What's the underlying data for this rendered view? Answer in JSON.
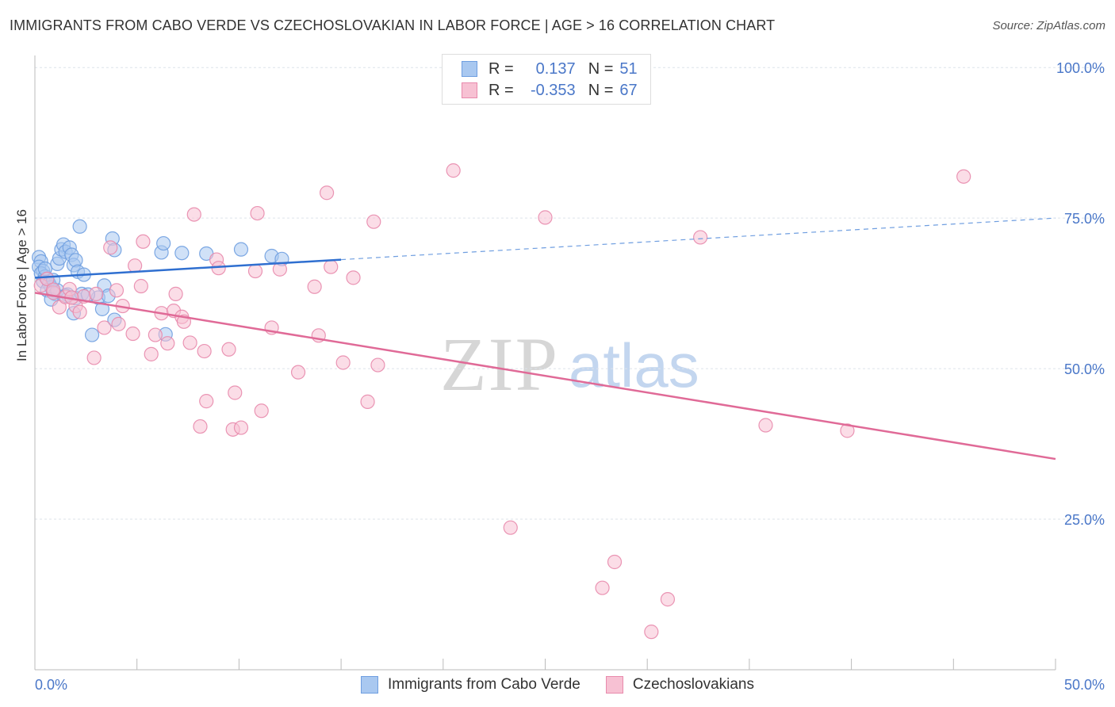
{
  "title": "IMMIGRANTS FROM CABO VERDE VS CZECHOSLOVAKIAN IN LABOR FORCE | AGE > 16 CORRELATION CHART",
  "source": "Source: ZipAtlas.com",
  "watermark": {
    "zip": "ZIP",
    "atlas": "atlas"
  },
  "legend": {
    "rows": [
      {
        "r_label": "R =",
        "r_value": "0.137",
        "n_label": "N =",
        "n_value": "51",
        "color": "#a9c8f0",
        "border": "#6f9ee0"
      },
      {
        "r_label": "R =",
        "r_value": "-0.353",
        "n_label": "N =",
        "n_value": "67",
        "color": "#f7c1d3",
        "border": "#e88aac"
      }
    ]
  },
  "chart_data": {
    "type": "scatter",
    "title": "IMMIGRANTS FROM CABO VERDE VS CZECHOSLOVAKIAN IN LABOR FORCE | AGE > 16 CORRELATION CHART",
    "xlabel": "",
    "ylabel": "In Labor Force | Age > 16",
    "xlim": [
      0,
      50
    ],
    "ylim": [
      0,
      102
    ],
    "x_tick_labels": [
      "0.0%",
      "50.0%"
    ],
    "y_tick_labels": [
      "25.0%",
      "50.0%",
      "75.0%",
      "100.0%"
    ],
    "y_ticks": [
      25,
      50,
      75,
      100
    ],
    "grid": true,
    "legend_position": "bottom-center",
    "series": [
      {
        "name": "Immigrants from Cabo Verde",
        "color": "#6f9ee0",
        "fill": "#a9c8f0",
        "points": [
          [
            0.2,
            68.5
          ],
          [
            0.3,
            67.8
          ],
          [
            0.2,
            66.9
          ],
          [
            0.4,
            66.2
          ],
          [
            0.3,
            65.8
          ],
          [
            0.5,
            65.3
          ],
          [
            0.6,
            64.9
          ],
          [
            0.4,
            64.5
          ],
          [
            0.7,
            64.1
          ],
          [
            0.8,
            63.5
          ],
          [
            0.6,
            63.0
          ],
          [
            0.9,
            62.7
          ],
          [
            1.0,
            62.4
          ],
          [
            0.8,
            61.5
          ],
          [
            1.1,
            67.4
          ],
          [
            1.2,
            68.3
          ],
          [
            1.3,
            69.8
          ],
          [
            1.4,
            70.6
          ],
          [
            1.5,
            69.4
          ],
          [
            1.7,
            70.1
          ],
          [
            1.8,
            68.9
          ],
          [
            1.9,
            67.2
          ],
          [
            2.0,
            68.0
          ],
          [
            2.1,
            66.1
          ],
          [
            2.4,
            65.6
          ],
          [
            1.6,
            62.3
          ],
          [
            1.9,
            59.2
          ],
          [
            2.0,
            61.7
          ],
          [
            2.3,
            62.4
          ],
          [
            2.2,
            73.6
          ],
          [
            2.8,
            55.6
          ],
          [
            3.1,
            61.8
          ],
          [
            3.3,
            59.9
          ],
          [
            3.4,
            63.8
          ],
          [
            3.6,
            62.1
          ],
          [
            3.9,
            58.1
          ],
          [
            3.8,
            71.6
          ],
          [
            3.9,
            69.7
          ],
          [
            6.2,
            69.3
          ],
          [
            6.3,
            70.8
          ],
          [
            7.2,
            69.2
          ],
          [
            8.4,
            69.1
          ],
          [
            10.1,
            69.8
          ],
          [
            11.6,
            68.7
          ],
          [
            12.1,
            68.2
          ],
          [
            6.4,
            55.7
          ],
          [
            1.1,
            63.0
          ],
          [
            0.9,
            64.7
          ],
          [
            0.5,
            66.6
          ],
          [
            1.5,
            62.1
          ],
          [
            2.6,
            62.3
          ]
        ]
      },
      {
        "name": "Czechoslovakians",
        "color": "#e88aac",
        "fill": "#f7c1d3",
        "points": [
          [
            0.3,
            63.8
          ],
          [
            0.6,
            64.9
          ],
          [
            0.9,
            62.6
          ],
          [
            1.2,
            60.2
          ],
          [
            1.5,
            61.9
          ],
          [
            1.7,
            63.2
          ],
          [
            2.0,
            60.4
          ],
          [
            2.2,
            59.4
          ],
          [
            2.4,
            62.0
          ],
          [
            2.9,
            51.8
          ],
          [
            3.0,
            62.4
          ],
          [
            3.4,
            56.8
          ],
          [
            3.7,
            70.1
          ],
          [
            4.0,
            63.0
          ],
          [
            4.1,
            57.4
          ],
          [
            4.3,
            60.4
          ],
          [
            4.8,
            55.8
          ],
          [
            4.9,
            67.1
          ],
          [
            5.2,
            63.7
          ],
          [
            5.3,
            71.1
          ],
          [
            5.7,
            52.4
          ],
          [
            5.9,
            55.6
          ],
          [
            6.2,
            59.2
          ],
          [
            6.5,
            54.2
          ],
          [
            6.8,
            59.6
          ],
          [
            6.9,
            62.4
          ],
          [
            7.2,
            58.6
          ],
          [
            7.3,
            57.8
          ],
          [
            7.6,
            54.3
          ],
          [
            7.8,
            75.6
          ],
          [
            8.1,
            40.4
          ],
          [
            8.4,
            44.6
          ],
          [
            8.3,
            52.9
          ],
          [
            8.9,
            68.1
          ],
          [
            9.0,
            66.7
          ],
          [
            9.5,
            53.2
          ],
          [
            9.7,
            39.9
          ],
          [
            9.8,
            46.0
          ],
          [
            10.1,
            40.2
          ],
          [
            10.8,
            66.2
          ],
          [
            10.9,
            75.8
          ],
          [
            11.1,
            43.0
          ],
          [
            11.6,
            56.8
          ],
          [
            12.0,
            66.5
          ],
          [
            12.9,
            49.4
          ],
          [
            13.7,
            63.6
          ],
          [
            13.9,
            55.5
          ],
          [
            14.3,
            79.2
          ],
          [
            14.5,
            66.9
          ],
          [
            15.1,
            51.0
          ],
          [
            15.6,
            65.1
          ],
          [
            16.3,
            44.5
          ],
          [
            16.6,
            74.4
          ],
          [
            16.8,
            50.6
          ],
          [
            20.5,
            82.9
          ],
          [
            23.3,
            23.6
          ],
          [
            25.0,
            75.1
          ],
          [
            27.8,
            13.6
          ],
          [
            28.4,
            17.9
          ],
          [
            30.2,
            6.3
          ],
          [
            31.0,
            11.7
          ],
          [
            32.6,
            71.8
          ],
          [
            35.8,
            40.6
          ],
          [
            39.8,
            39.7
          ],
          [
            45.5,
            81.9
          ],
          [
            1.8,
            61.8
          ],
          [
            0.9,
            63.1
          ]
        ]
      }
    ],
    "trendlines": [
      {
        "series": "Immigrants from Cabo Verde",
        "x": [
          0,
          15
        ],
        "y": [
          65.1,
          68.1
        ],
        "dashed_extension": {
          "x": [
            15,
            50
          ],
          "y": [
            68.1,
            75.0
          ]
        }
      },
      {
        "series": "Czechoslovakians",
        "x": [
          0,
          50
        ],
        "y": [
          62.6,
          35.0
        ]
      }
    ]
  }
}
